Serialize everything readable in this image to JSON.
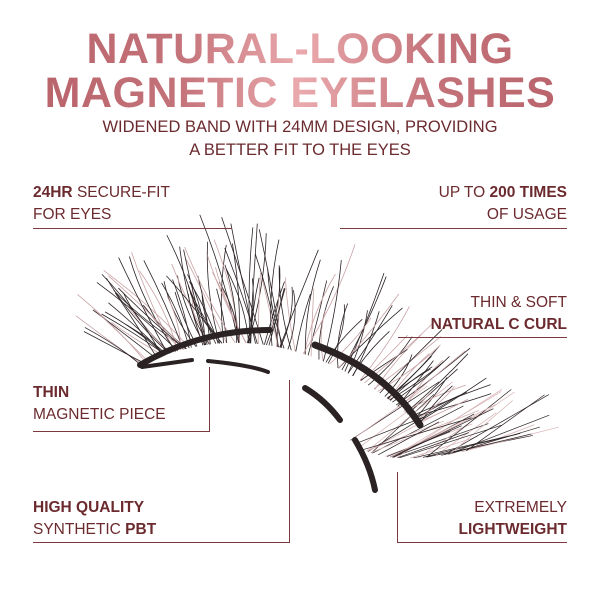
{
  "title": {
    "line1": "NATURAL-LOOKING",
    "line2": "MAGNETIC EYELASHES",
    "gradient": [
      "#b65f67",
      "#eaaaad"
    ]
  },
  "subtitle": {
    "line1": "WIDENED BAND WITH 24MM DESIGN, PROVIDING",
    "line2": "A BETTER FIT TO THE EYES"
  },
  "text_color": "#6b2a2e",
  "features": {
    "secure_fit": {
      "bold": "24HR",
      "rest": " SECURE-FIT",
      "line2": "FOR EYES"
    },
    "usage": {
      "pre": "UP TO ",
      "bold": "200 TIMES",
      "line2": "OF USAGE"
    },
    "curl": {
      "line1": "THIN & SOFT",
      "bold": "NATURAL C CURL"
    },
    "magnetic": {
      "bold": "THIN",
      "line2": "MAGNETIC PIECE"
    },
    "material": {
      "bold": "HIGH QUALITY",
      "pre": "SYNTHETIC ",
      "bold2": "PBT"
    },
    "weight": {
      "line1": "EXTREMELY",
      "bold": "LIGHTWEIGHT"
    }
  },
  "image": {
    "subject": "eyelash-illustration"
  }
}
